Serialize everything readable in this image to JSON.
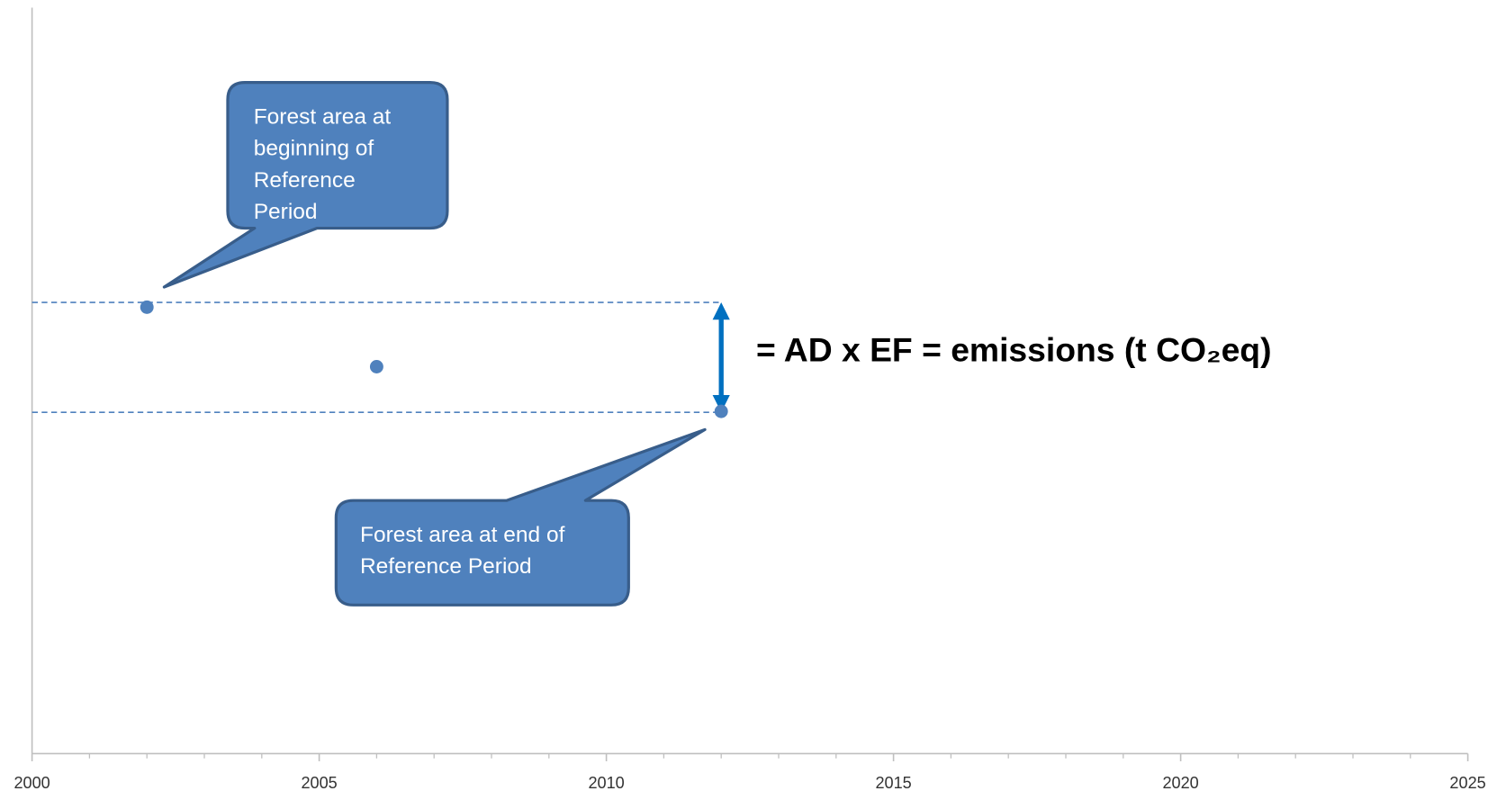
{
  "chart_data": {
    "type": "scatter",
    "x": [
      2002,
      2006,
      2012
    ],
    "values": [
      60,
      52,
      46
    ],
    "color": "#4f81bd",
    "xlim": [
      2000,
      2025
    ],
    "xticks": [
      2000,
      2005,
      2010,
      2015,
      2020,
      2025
    ],
    "ylim": [
      0,
      100
    ],
    "annotations": [
      {
        "lines": [
          "Forest area at",
          "beginning of",
          "Reference",
          "Period"
        ]
      },
      {
        "lines": [
          "Forest area at end of",
          "Reference Period"
        ]
      },
      {
        "text": "= AD x EF = emissions (t CO₂eq)"
      }
    ]
  }
}
